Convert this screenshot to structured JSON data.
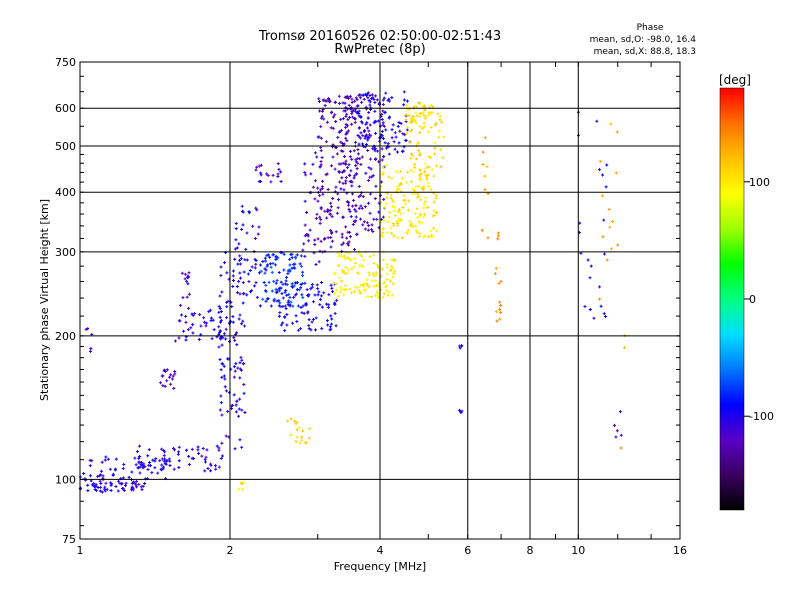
{
  "chart_data": {
    "type": "scatter",
    "title": "Tromsø 20160526 02:50:00-02:51:43",
    "subtitle": "RwPretec (8p)",
    "xlabel": "Frequency [MHz]",
    "ylabel": "Stationary phase Virtual Height [km]",
    "x_scale": "log2",
    "y_scale": "log",
    "xlim": [
      1,
      16
    ],
    "ylim": [
      75,
      750
    ],
    "x_ticks": [
      1,
      2,
      4,
      6,
      8,
      10,
      16
    ],
    "y_ticks": [
      75,
      100,
      200,
      300,
      400,
      500,
      600,
      750
    ],
    "x_tick_labels": [
      "1",
      "2",
      "4",
      "6",
      "8",
      "10",
      "16"
    ],
    "y_tick_labels": [
      "75",
      "100",
      "200",
      "300",
      "400",
      "500",
      "600",
      "750"
    ],
    "grid": true,
    "stats": {
      "title": "Phase",
      "line_o": "mean, sd,O: -98.0, 16.4",
      "line_x": "mean, sd,X:  88.8, 18.3"
    },
    "colorbar": {
      "label": "[deg]",
      "min": -180,
      "max": 180,
      "ticks": [
        100,
        0,
        -100
      ],
      "tick_labels": [
        "100",
        "0",
        "-100"
      ],
      "palette": [
        "#000000",
        "#3a0060",
        "#5a00c8",
        "#0000ff",
        "#0078ff",
        "#00e0ff",
        "#00ff80",
        "#00ff00",
        "#a0ff00",
        "#ffff00",
        "#ffc000",
        "#ff7000",
        "#ff0000"
      ]
    },
    "series": [
      {
        "x_range": [
          1.0,
          1.35
        ],
        "y_range": [
          94,
          100
        ],
        "phase": -105,
        "n": 60
      },
      {
        "x_range": [
          1.0,
          1.5
        ],
        "y_range": [
          100,
          112
        ],
        "phase": -100,
        "n": 60
      },
      {
        "x_range": [
          1.3,
          1.95
        ],
        "y_range": [
          104,
          118
        ],
        "phase": -100,
        "n": 60
      },
      {
        "x_range": [
          1.02,
          1.06
        ],
        "y_range": [
          185,
          210
        ],
        "phase": -110,
        "n": 5
      },
      {
        "x_range": [
          1.45,
          1.55
        ],
        "y_range": [
          155,
          170
        ],
        "phase": -115,
        "n": 18
      },
      {
        "x_range": [
          1.55,
          1.95
        ],
        "y_range": [
          195,
          235
        ],
        "phase": -105,
        "n": 45
      },
      {
        "x_range": [
          1.6,
          1.68
        ],
        "y_range": [
          240,
          275
        ],
        "phase": -105,
        "n": 12
      },
      {
        "x_range": [
          1.9,
          2.15
        ],
        "y_range": [
          115,
          300
        ],
        "phase": -100,
        "n": 110
      },
      {
        "x_range": [
          2.05,
          2.3
        ],
        "y_range": [
          240,
          380
        ],
        "phase": -100,
        "n": 45
      },
      {
        "x_range": [
          2.25,
          2.55
        ],
        "y_range": [
          420,
          460
        ],
        "phase": -110,
        "n": 18
      },
      {
        "x_range": [
          2.3,
          2.8
        ],
        "y_range": [
          230,
          300
        ],
        "phase": -80,
        "n": 110
      },
      {
        "x_range": [
          2.5,
          3.3
        ],
        "y_range": [
          205,
          260
        ],
        "phase": -95,
        "n": 90
      },
      {
        "x_range": [
          2.8,
          3.1
        ],
        "y_range": [
          280,
          500
        ],
        "phase": -115,
        "n": 45
      },
      {
        "x_range": [
          3.0,
          3.6
        ],
        "y_range": [
          300,
          640
        ],
        "phase": -125,
        "n": 170
      },
      {
        "x_range": [
          3.3,
          4.1
        ],
        "y_range": [
          330,
          650
        ],
        "phase": -115,
        "n": 160
      },
      {
        "x_range": [
          3.6,
          4.6
        ],
        "y_range": [
          480,
          650
        ],
        "phase": -100,
        "n": 100
      },
      {
        "x_range": [
          3.2,
          4.3
        ],
        "y_range": [
          240,
          300
        ],
        "phase": 95,
        "n": 130
      },
      {
        "x_range": [
          4.0,
          5.2
        ],
        "y_range": [
          320,
          460
        ],
        "phase": 100,
        "n": 150
      },
      {
        "x_range": [
          4.5,
          5.1
        ],
        "y_range": [
          530,
          610
        ],
        "phase": 105,
        "n": 45
      },
      {
        "x_range": [
          4.6,
          5.4
        ],
        "y_range": [
          420,
          620
        ],
        "phase": 110,
        "n": 50
      },
      {
        "x_range": [
          2.6,
          2.9
        ],
        "y_range": [
          118,
          135
        ],
        "phase": 110,
        "n": 18
      },
      {
        "x_range": [
          2.08,
          2.15
        ],
        "y_range": [
          95,
          99
        ],
        "phase": 100,
        "n": 6
      },
      {
        "x_range": [
          5.75,
          5.85
        ],
        "y_range": [
          138,
          140
        ],
        "phase": -100,
        "n": 4
      },
      {
        "x_range": [
          5.75,
          5.85
        ],
        "y_range": [
          188,
          192
        ],
        "phase": -100,
        "n": 4
      },
      {
        "x_range": [
          6.4,
          6.6
        ],
        "y_range": [
          320,
          570
        ],
        "phase": 130,
        "n": 10
      },
      {
        "x_range": [
          6.8,
          7.0
        ],
        "y_range": [
          210,
          340
        ],
        "phase": 140,
        "n": 14
      },
      {
        "x_range": [
          10.0,
          11.5
        ],
        "y_range": [
          210,
          620
        ],
        "phase": -100,
        "n": 22
      },
      {
        "x_range": [
          11.0,
          12.5
        ],
        "y_range": [
          105,
          640
        ],
        "phase": 130,
        "n": 16
      },
      {
        "x_range": [
          11.8,
          12.2
        ],
        "y_range": [
          120,
          150
        ],
        "phase": -130,
        "n": 5
      }
    ]
  }
}
